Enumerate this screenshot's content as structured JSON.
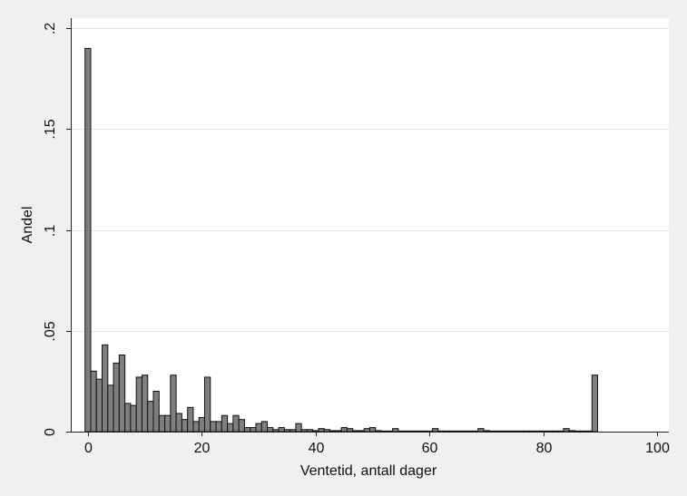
{
  "chart_data": {
    "type": "bar",
    "xlabel": "Ventetid, antall dager",
    "ylabel": "Andel",
    "xlim": [
      -3,
      102
    ],
    "ylim": [
      0,
      0.205
    ],
    "x_ticks": [
      {
        "value": 0,
        "label": "0"
      },
      {
        "value": 20,
        "label": "20"
      },
      {
        "value": 40,
        "label": "40"
      },
      {
        "value": 60,
        "label": "60"
      },
      {
        "value": 80,
        "label": "80"
      },
      {
        "value": 100,
        "label": "100"
      }
    ],
    "y_ticks": [
      {
        "value": 0,
        "label": "0"
      },
      {
        "value": 0.05,
        "label": ".05"
      },
      {
        "value": 0.1,
        "label": ".1"
      },
      {
        "value": 0.15,
        "label": ".15"
      },
      {
        "value": 0.2,
        "label": ".2"
      }
    ],
    "grid": true,
    "bar_width": 1,
    "bar_color": "#7f7f7f",
    "x": [
      0,
      1,
      2,
      3,
      4,
      5,
      6,
      7,
      8,
      9,
      10,
      11,
      12,
      13,
      14,
      15,
      16,
      17,
      18,
      19,
      20,
      21,
      22,
      23,
      24,
      25,
      26,
      27,
      28,
      29,
      30,
      31,
      32,
      33,
      34,
      35,
      36,
      37,
      38,
      39,
      40,
      41,
      42,
      43,
      44,
      45,
      46,
      47,
      48,
      49,
      50,
      51,
      52,
      53,
      54,
      55,
      56,
      57,
      58,
      59,
      60,
      61,
      62,
      63,
      64,
      65,
      66,
      67,
      68,
      69,
      70,
      71,
      72,
      73,
      74,
      75,
      76,
      77,
      78,
      79,
      80,
      81,
      82,
      83,
      84,
      85,
      86,
      87,
      88,
      89
    ],
    "values": [
      0.19,
      0.03,
      0.026,
      0.043,
      0.023,
      0.034,
      0.038,
      0.014,
      0.013,
      0.027,
      0.028,
      0.015,
      0.02,
      0.008,
      0.008,
      0.028,
      0.009,
      0.006,
      0.012,
      0.005,
      0.007,
      0.027,
      0.005,
      0.005,
      0.008,
      0.004,
      0.008,
      0.006,
      0.002,
      0.002,
      0.004,
      0.005,
      0.002,
      0.001,
      0.002,
      0.001,
      0.001,
      0.004,
      0.001,
      0.001,
      0.0005,
      0.0015,
      0.001,
      0.0005,
      0.0005,
      0.002,
      0.0015,
      0.0005,
      0.0005,
      0.0015,
      0.002,
      0.0005,
      0.0003,
      0.0003,
      0.0015,
      0.0003,
      0.0003,
      0.0003,
      0.0003,
      0.0003,
      0.0003,
      0.0015,
      0.0003,
      0.0003,
      0.0003,
      0.0003,
      0.0003,
      0.0003,
      0.0003,
      0.0015,
      0.0005,
      0.0003,
      0.0003,
      0.0003,
      0.0003,
      0.0003,
      0.0003,
      0.0003,
      0.0003,
      0.0003,
      0.0003,
      0.0003,
      0.0003,
      0.0003,
      0.0015,
      0.0005,
      0.0003,
      0.0003,
      0.0003,
      0.028
    ]
  }
}
